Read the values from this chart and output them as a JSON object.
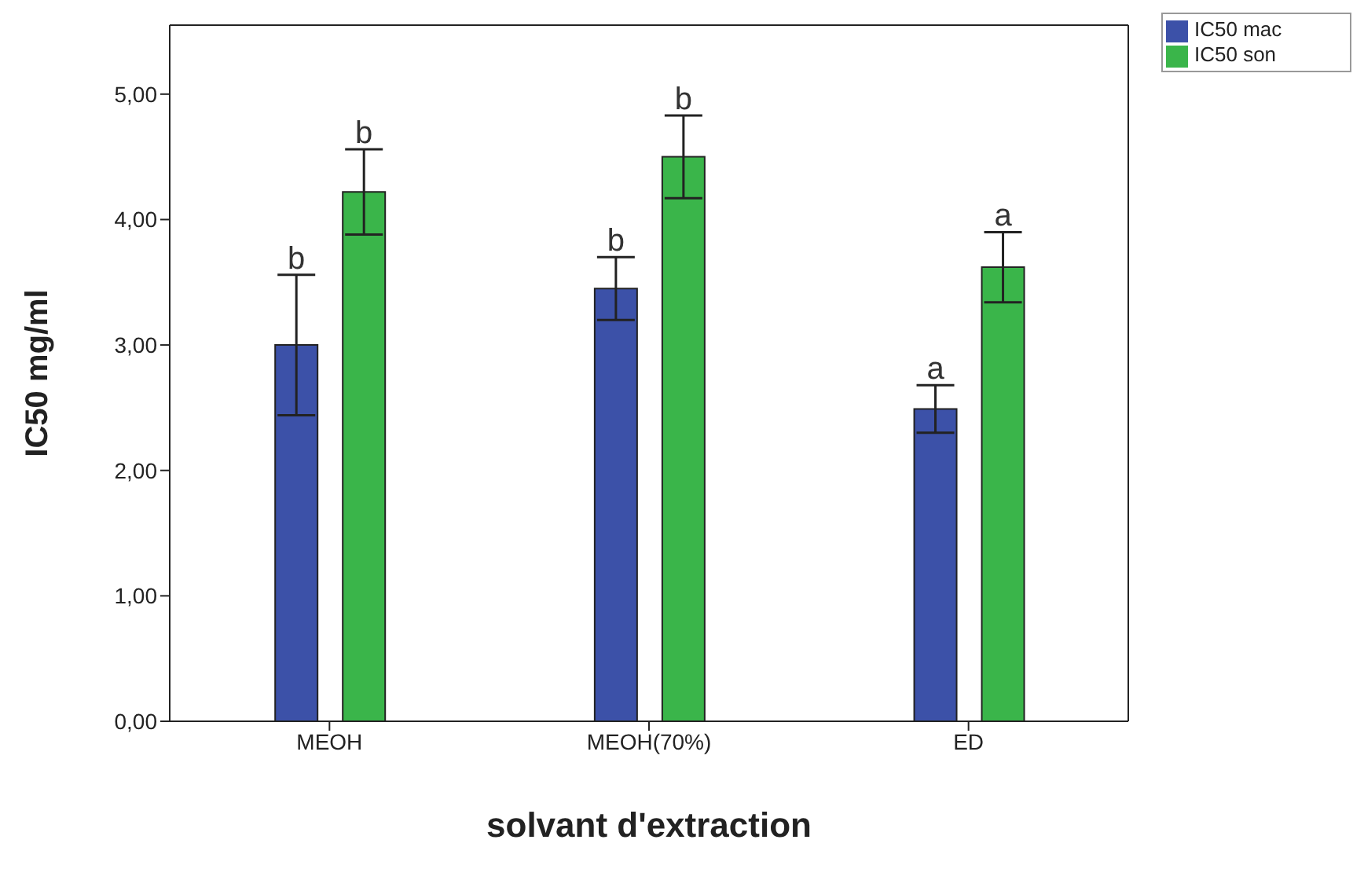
{
  "chart_data": {
    "type": "bar",
    "xlabel": "solvant d'extraction",
    "ylabel": "IC50 mg/ml",
    "categories": [
      "MEOH",
      "MEOH(70%)",
      "ED"
    ],
    "series": [
      {
        "name": "IC50 mac",
        "color": "#3c51a8",
        "values": [
          3.0,
          3.45,
          2.49
        ],
        "errors": [
          0.56,
          0.25,
          0.19
        ]
      },
      {
        "name": "IC50 son",
        "color": "#3ab54a",
        "values": [
          4.22,
          4.5,
          3.62
        ],
        "errors": [
          0.34,
          0.33,
          0.28
        ]
      }
    ],
    "ylim": [
      0,
      5.55
    ],
    "yticks": [
      {
        "value": 0,
        "label": "0,00"
      },
      {
        "value": 1,
        "label": "1,00"
      },
      {
        "value": 2,
        "label": "2,00"
      },
      {
        "value": 3,
        "label": "3,00"
      },
      {
        "value": 4,
        "label": "4,00"
      },
      {
        "value": 5,
        "label": "5,00"
      }
    ],
    "annotations": [
      "b",
      "b",
      "b",
      "b",
      "a",
      "a"
    ],
    "grid": false,
    "legend": "top right"
  }
}
